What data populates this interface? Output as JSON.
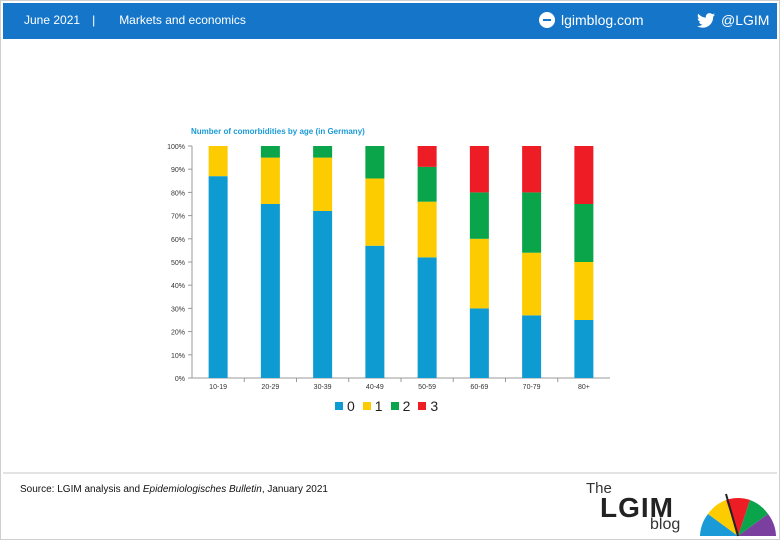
{
  "header": {
    "date": "June 2021",
    "separator": "|",
    "section": "Markets and economics",
    "site": "lgimblog.com",
    "twitter": "@LGIM"
  },
  "source": {
    "prefix": "Source: LGIM analysis and ",
    "italic": "Epidemiologisches Bulletin",
    "suffix": ", January 2021"
  },
  "logo": {
    "the": "The",
    "name": "LGIM",
    "blog": "blog"
  },
  "colors": {
    "header_bg": "#1576c9",
    "s0": "#0e9bd1",
    "s1": "#fccb00",
    "s2": "#0aa54a",
    "s3": "#ee1c25"
  },
  "chart_data": {
    "type": "bar",
    "stacked": true,
    "title": "Number of comorbidities by age (in Germany)",
    "categories": [
      "10-19",
      "20-29",
      "30-39",
      "40-49",
      "50-59",
      "60-69",
      "70-79",
      "80+"
    ],
    "series": [
      {
        "name": "0",
        "color": "#0e9bd1",
        "values": [
          87,
          75,
          72,
          57,
          52,
          30,
          27,
          25
        ]
      },
      {
        "name": "1",
        "color": "#fccb00",
        "values": [
          13,
          20,
          23,
          29,
          24,
          30,
          27,
          25
        ]
      },
      {
        "name": "2",
        "color": "#0aa54a",
        "values": [
          0,
          5,
          5,
          14,
          15,
          20,
          26,
          25
        ]
      },
      {
        "name": "3",
        "color": "#ee1c25",
        "values": [
          0,
          0,
          0,
          0,
          9,
          20,
          20,
          25
        ]
      }
    ],
    "yticks": [
      "0%",
      "10%",
      "20%",
      "30%",
      "40%",
      "50%",
      "60%",
      "70%",
      "80%",
      "90%",
      "100%"
    ],
    "ylim": [
      0,
      100
    ],
    "grid": false,
    "legend": "bottom"
  }
}
